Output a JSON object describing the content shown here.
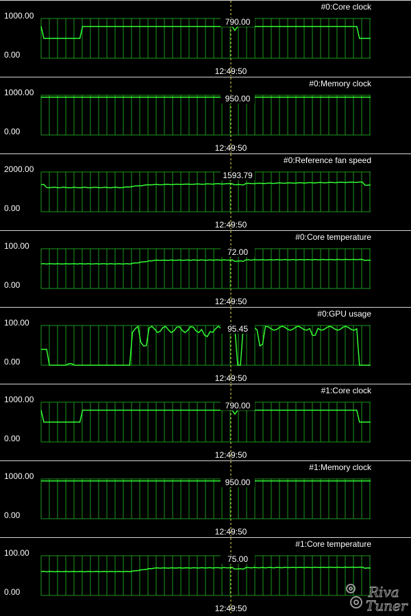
{
  "panels": [
    {
      "title": "#0:Core clock",
      "y_max_label": "1000.00",
      "y_min_label": "0.00",
      "current_value": "790.00",
      "time": "12:49:50",
      "range": [
        0,
        1000
      ],
      "shape": "clock"
    },
    {
      "title": "#0:Memory clock",
      "y_max_label": "1000.00",
      "y_min_label": "0.00",
      "current_value": "950.00",
      "time": "12:49:50",
      "range": [
        0,
        1000
      ],
      "shape": "flat95"
    },
    {
      "title": "#0:Reference fan speed",
      "y_max_label": "2000.00",
      "y_min_label": "0.00",
      "current_value": "1593.79",
      "time": "12:49:50",
      "range": [
        0,
        2000
      ],
      "shape": "fan"
    },
    {
      "title": "#0:Core temperature",
      "y_max_label": "100.00",
      "y_min_label": "0.00",
      "current_value": "72.00",
      "time": "12:49:50",
      "range": [
        0,
        100
      ],
      "shape": "temp0"
    },
    {
      "title": "#0:GPU usage",
      "y_max_label": "100.00",
      "y_min_label": "0.00",
      "current_value": "95.45",
      "time": "12:49:50",
      "range": [
        0,
        100
      ],
      "shape": "usage"
    },
    {
      "title": "#1:Core clock",
      "y_max_label": "1000.00",
      "y_min_label": "0.00",
      "current_value": "790.00",
      "time": "12:49:50",
      "range": [
        0,
        1000
      ],
      "shape": "clock"
    },
    {
      "title": "#1:Memory clock",
      "y_max_label": "1000.00",
      "y_min_label": "0.00",
      "current_value": "950.00",
      "time": "12:49:50",
      "range": [
        0,
        1000
      ],
      "shape": "flat95"
    },
    {
      "title": "#1:Core temperature",
      "y_max_label": "100.00",
      "y_min_label": "0.00",
      "current_value": "75.00",
      "time": "12:49:50",
      "range": [
        0,
        100
      ],
      "shape": "temp1"
    }
  ],
  "colors": {
    "grid": "#1c9a1c",
    "trace": "#33ff33",
    "cursor": "#e6e64a",
    "text": "#ffffff",
    "background": "#000000"
  },
  "logo_text": "RivaTuner"
}
